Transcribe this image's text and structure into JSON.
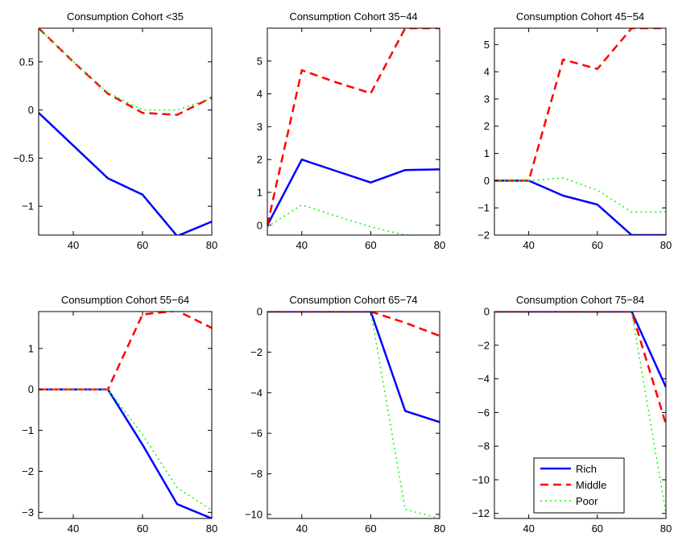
{
  "chart_data": [
    {
      "type": "line",
      "title": "Consumption Cohort <35",
      "xlim": [
        30,
        80
      ],
      "ylim": [
        -1.3,
        0.85
      ],
      "xticks": [
        40,
        60,
        80
      ],
      "yticks": [
        -1,
        -0.5,
        0,
        0.5
      ],
      "ytick_labels": [
        "−1",
        "−0.5",
        "0",
        "0.5"
      ],
      "x": [
        30,
        40,
        50,
        60,
        70,
        80
      ],
      "series": [
        {
          "name": "Rich",
          "values": [
            -0.03,
            -0.37,
            -0.71,
            -0.88,
            -1.31,
            -1.16
          ]
        },
        {
          "name": "Middle",
          "values": [
            0.85,
            0.5,
            0.17,
            -0.03,
            -0.05,
            0.13
          ]
        },
        {
          "name": "Poor",
          "values": [
            0.85,
            0.5,
            0.18,
            0.0,
            0.0,
            0.12
          ]
        }
      ]
    },
    {
      "type": "line",
      "title": "Consumption Cohort 35−44",
      "xlim": [
        30,
        80
      ],
      "ylim": [
        -0.3,
        6.0
      ],
      "xticks": [
        40,
        60,
        80
      ],
      "yticks": [
        0,
        1,
        2,
        3,
        4,
        5
      ],
      "ytick_labels": [
        "0",
        "1",
        "2",
        "3",
        "4",
        "5"
      ],
      "x": [
        30,
        40,
        50,
        60,
        70,
        80
      ],
      "series": [
        {
          "name": "Rich",
          "values": [
            0.0,
            2.0,
            1.65,
            1.3,
            1.68,
            1.7
          ]
        },
        {
          "name": "Middle",
          "values": [
            0.0,
            4.72,
            4.35,
            4.02,
            6.0,
            6.0
          ]
        },
        {
          "name": "Poor",
          "values": [
            -0.05,
            0.62,
            0.28,
            -0.05,
            -0.3,
            -0.3
          ]
        }
      ]
    },
    {
      "type": "line",
      "title": "Consumption Cohort 45−54",
      "xlim": [
        30,
        80
      ],
      "ylim": [
        -2.0,
        5.6
      ],
      "xticks": [
        40,
        60,
        80
      ],
      "yticks": [
        -2,
        -1,
        0,
        1,
        2,
        3,
        4,
        5
      ],
      "ytick_labels": [
        "−2",
        "−1",
        "0",
        "1",
        "2",
        "3",
        "4",
        "5"
      ],
      "x": [
        30,
        40,
        50,
        60,
        70,
        80
      ],
      "series": [
        {
          "name": "Rich",
          "values": [
            0.0,
            0.0,
            -0.55,
            -0.88,
            -2.0,
            -2.0
          ]
        },
        {
          "name": "Middle",
          "values": [
            0.0,
            0.0,
            4.45,
            4.1,
            5.6,
            5.6
          ]
        },
        {
          "name": "Poor",
          "values": [
            0.0,
            0.0,
            0.1,
            -0.35,
            -1.15,
            -1.15
          ]
        }
      ]
    },
    {
      "type": "line",
      "title": "Consumption Cohort 55−64",
      "xlim": [
        30,
        80
      ],
      "ylim": [
        -3.15,
        1.9
      ],
      "xticks": [
        40,
        60,
        80
      ],
      "yticks": [
        -3,
        -2,
        -1,
        0,
        1
      ],
      "ytick_labels": [
        "−3",
        "−2",
        "−1",
        "0",
        "1"
      ],
      "x": [
        30,
        40,
        50,
        60,
        70,
        80
      ],
      "series": [
        {
          "name": "Rich",
          "values": [
            0.0,
            0.0,
            0.0,
            -1.35,
            -2.8,
            -3.15
          ]
        },
        {
          "name": "Middle",
          "values": [
            0.0,
            0.0,
            0.0,
            1.83,
            1.92,
            1.5
          ]
        },
        {
          "name": "Poor",
          "values": [
            0.0,
            0.0,
            0.0,
            -1.1,
            -2.4,
            -2.95
          ]
        }
      ]
    },
    {
      "type": "line",
      "title": "Consumption Cohort 65−74",
      "xlim": [
        30,
        80
      ],
      "ylim": [
        -10.2,
        0
      ],
      "xticks": [
        40,
        60,
        80
      ],
      "yticks": [
        -10,
        -8,
        -6,
        -4,
        -2,
        0
      ],
      "ytick_labels": [
        "−10",
        "−8",
        "−6",
        "−4",
        "−2",
        "0"
      ],
      "x": [
        30,
        40,
        50,
        60,
        70,
        80
      ],
      "series": [
        {
          "name": "Rich",
          "values": [
            0,
            0,
            0,
            0,
            -4.9,
            -5.45
          ]
        },
        {
          "name": "Middle",
          "values": [
            0,
            0,
            0,
            0,
            -0.55,
            -1.2
          ]
        },
        {
          "name": "Poor",
          "values": [
            0,
            0,
            0,
            0,
            -9.75,
            -10.2
          ]
        }
      ]
    },
    {
      "type": "line",
      "title": "Consumption Cohort 75−84",
      "xlim": [
        30,
        80
      ],
      "ylim": [
        -12.3,
        0
      ],
      "xticks": [
        40,
        60,
        80
      ],
      "yticks": [
        -12,
        -10,
        -8,
        -6,
        -4,
        -2,
        0
      ],
      "ytick_labels": [
        "−12",
        "−10",
        "−8",
        "−6",
        "−4",
        "−2",
        "0"
      ],
      "x": [
        30,
        40,
        50,
        60,
        70,
        80
      ],
      "series": [
        {
          "name": "Rich",
          "values": [
            0,
            0,
            0,
            0,
            0,
            -4.5
          ]
        },
        {
          "name": "Middle",
          "values": [
            0,
            0,
            0,
            0,
            0,
            -6.7
          ]
        },
        {
          "name": "Poor",
          "values": [
            0,
            0,
            0,
            0,
            0,
            -12.0
          ]
        }
      ],
      "legend": {
        "placement": "bottom-right",
        "entries": [
          "Rich",
          "Middle",
          "Poor"
        ]
      }
    }
  ],
  "series_styles": {
    "Rich": {
      "color": "#0000ff",
      "dash": "solid"
    },
    "Middle": {
      "color": "#ff0000",
      "dash": "dashed"
    },
    "Poor": {
      "color": "#00ff00",
      "dash": "dotted"
    }
  }
}
